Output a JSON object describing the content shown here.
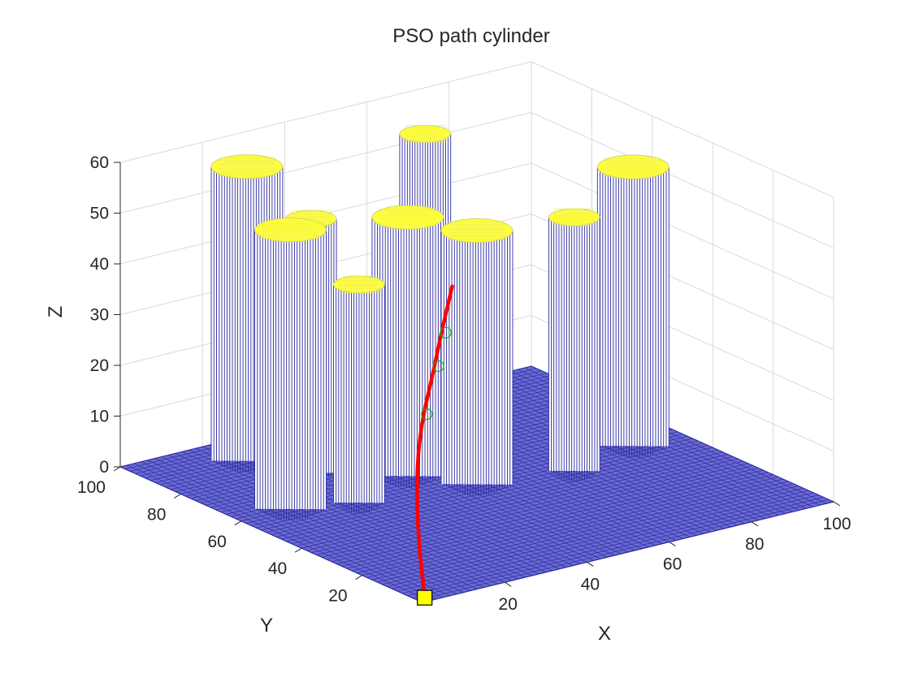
{
  "chart_data": {
    "type": "surface3d",
    "title": "PSO path cylinder",
    "xlabel": "X",
    "ylabel": "Y",
    "zlabel": "Z",
    "xlim": [
      0,
      100
    ],
    "ylim": [
      0,
      100
    ],
    "zlim": [
      0,
      60
    ],
    "x_ticks": [
      20,
      40,
      60,
      80,
      100
    ],
    "y_ticks": [
      20,
      40,
      60,
      80,
      100
    ],
    "z_ticks": [
      0,
      10,
      20,
      30,
      40,
      50,
      60
    ],
    "grid": true,
    "colors": {
      "mesh": "#2a2aa0",
      "mesh_fill": "#6a6ad2",
      "cylinder_top": "#ffff3c",
      "path": "#ff0000",
      "waypoint": "#00c000",
      "start_marker": "#ffff00",
      "grid": "#d9d9d9",
      "axis": "#262626"
    },
    "cylinders": [
      {
        "x": 12,
        "y": 60,
        "radius": 7,
        "height": 55
      },
      {
        "x": 22,
        "y": 88,
        "radius": 7,
        "height": 58
      },
      {
        "x": 28,
        "y": 75,
        "radius": 5,
        "height": 50
      },
      {
        "x": 18,
        "y": 65,
        "radius": 5,
        "height": 45
      },
      {
        "x": 25,
        "y": 55,
        "radius": 5,
        "height": 43
      },
      {
        "x": 42,
        "y": 62,
        "radius": 7,
        "height": 51
      },
      {
        "x": 50,
        "y": 50,
        "radius": 7,
        "height": 50
      },
      {
        "x": 58,
        "y": 78,
        "radius": 5,
        "height": 60
      },
      {
        "x": 70,
        "y": 45,
        "radius": 5,
        "height": 50
      },
      {
        "x": 88,
        "y": 50,
        "radius": 7,
        "height": 55
      }
    ],
    "path": {
      "start": [
        2,
        2,
        0
      ],
      "points": [
        [
          2,
          2,
          0
        ],
        [
          15,
          22,
          5
        ],
        [
          28,
          40,
          10
        ],
        [
          38,
          52,
          14
        ],
        [
          45,
          58,
          20
        ],
        [
          50,
          62,
          26
        ],
        [
          55,
          65,
          34
        ]
      ],
      "waypoints": [
        [
          40,
          53,
          15
        ],
        [
          48,
          60,
          21
        ],
        [
          52,
          63,
          26
        ]
      ]
    }
  }
}
